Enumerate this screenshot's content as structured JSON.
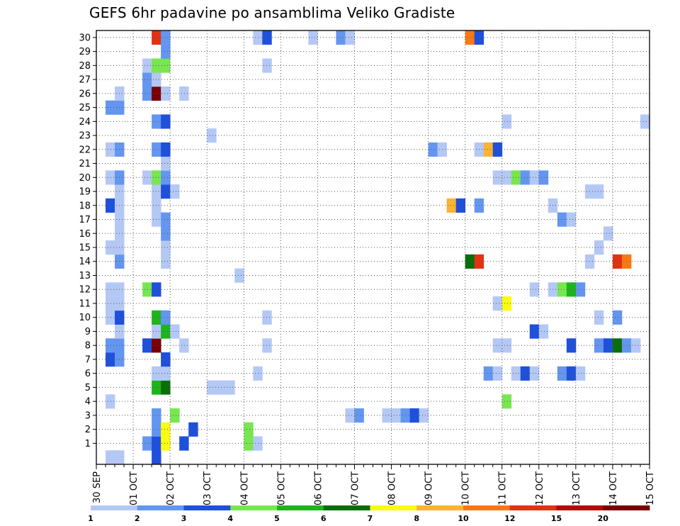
{
  "chart_data": {
    "type": "heatmap",
    "title": "GEFS 6hr padavine po ansamblima Veliko Gradiste",
    "x_tick_labels": [
      "30 SEP",
      "01 OCT",
      "02 OCT",
      "03 OCT",
      "04 OCT",
      "05 OCT",
      "06 OCT",
      "07 OCT",
      "08 OCT",
      "09 OCT",
      "10 OCT",
      "11 OCT",
      "12 OCT",
      "13 OCT",
      "14 OCT",
      "15 OCT"
    ],
    "time_step_hours": 6,
    "time_steps": 60,
    "y_tick_labels": [
      "1",
      "2",
      "3",
      "4",
      "5",
      "6",
      "7",
      "8",
      "9",
      "10",
      "11",
      "12",
      "13",
      "14",
      "15",
      "16",
      "17",
      "18",
      "19",
      "20",
      "21",
      "22",
      "23",
      "24",
      "25",
      "26",
      "27",
      "28",
      "29",
      "30"
    ],
    "members": 31,
    "legend": {
      "placement": "bottom",
      "boundaries": [
        1,
        2,
        3,
        4,
        5,
        6,
        7,
        8,
        10,
        12,
        15,
        20
      ],
      "boundary_labels": [
        "1",
        "2",
        "3",
        "4",
        "5",
        "6",
        "7",
        "8",
        "10",
        "12",
        "15",
        "20"
      ],
      "colors": [
        "#b4c8f5",
        "#6496f0",
        "#1e50dc",
        "#78e650",
        "#1eb41e",
        "#0a6e0a",
        "#fafa14",
        "#fab432",
        "#fa7814",
        "#e13214",
        "#b40a0a",
        "#780000"
      ]
    },
    "grid": true,
    "cells": [
      [
        1,
        0,
        1
      ],
      [
        2,
        0,
        1
      ],
      [
        6,
        0,
        3
      ],
      [
        5,
        1,
        2
      ],
      [
        6,
        1,
        3
      ],
      [
        7,
        1,
        7
      ],
      [
        9,
        1,
        3
      ],
      [
        16,
        1,
        4
      ],
      [
        17,
        1,
        1
      ],
      [
        6,
        2,
        2
      ],
      [
        7,
        2,
        7
      ],
      [
        10,
        2,
        3
      ],
      [
        16,
        2,
        4
      ],
      [
        6,
        3,
        2
      ],
      [
        8,
        3,
        4
      ],
      [
        27,
        3,
        1
      ],
      [
        28,
        3,
        2
      ],
      [
        31,
        3,
        1
      ],
      [
        32,
        3,
        1
      ],
      [
        33,
        3,
        2
      ],
      [
        34,
        3,
        3
      ],
      [
        35,
        3,
        1
      ],
      [
        1,
        4,
        1
      ],
      [
        44,
        4,
        4
      ],
      [
        6,
        5,
        5
      ],
      [
        7,
        5,
        6
      ],
      [
        12,
        5,
        1
      ],
      [
        13,
        5,
        1
      ],
      [
        14,
        5,
        1
      ],
      [
        6,
        6,
        1
      ],
      [
        7,
        6,
        1
      ],
      [
        17,
        6,
        1
      ],
      [
        42,
        6,
        2
      ],
      [
        43,
        6,
        1
      ],
      [
        45,
        6,
        1
      ],
      [
        46,
        6,
        3
      ],
      [
        47,
        6,
        1
      ],
      [
        50,
        6,
        2
      ],
      [
        51,
        6,
        3
      ],
      [
        52,
        6,
        1
      ],
      [
        1,
        7,
        3
      ],
      [
        2,
        7,
        2
      ],
      [
        7,
        7,
        3
      ],
      [
        1,
        8,
        2
      ],
      [
        2,
        8,
        2
      ],
      [
        5,
        8,
        3
      ],
      [
        6,
        8,
        12
      ],
      [
        9,
        8,
        1
      ],
      [
        18,
        8,
        1
      ],
      [
        43,
        8,
        1
      ],
      [
        44,
        8,
        1
      ],
      [
        51,
        8,
        3
      ],
      [
        54,
        8,
        2
      ],
      [
        55,
        8,
        3
      ],
      [
        56,
        8,
        6
      ],
      [
        57,
        8,
        2
      ],
      [
        58,
        8,
        1
      ],
      [
        2,
        9,
        1
      ],
      [
        6,
        9,
        1
      ],
      [
        7,
        9,
        5
      ],
      [
        8,
        9,
        1
      ],
      [
        47,
        9,
        3
      ],
      [
        48,
        9,
        1
      ],
      [
        1,
        10,
        1
      ],
      [
        2,
        10,
        3
      ],
      [
        6,
        10,
        5
      ],
      [
        7,
        10,
        2
      ],
      [
        18,
        10,
        1
      ],
      [
        54,
        10,
        1
      ],
      [
        56,
        10,
        2
      ],
      [
        1,
        11,
        1
      ],
      [
        2,
        11,
        1
      ],
      [
        43,
        11,
        1
      ],
      [
        44,
        11,
        7
      ],
      [
        1,
        12,
        1
      ],
      [
        2,
        12,
        1
      ],
      [
        5,
        12,
        4
      ],
      [
        6,
        12,
        3
      ],
      [
        47,
        12,
        1
      ],
      [
        49,
        12,
        1
      ],
      [
        50,
        12,
        4
      ],
      [
        51,
        12,
        5
      ],
      [
        52,
        12,
        2
      ],
      [
        15,
        13,
        1
      ],
      [
        2,
        14,
        2
      ],
      [
        7,
        14,
        1
      ],
      [
        40,
        14,
        6
      ],
      [
        41,
        14,
        10
      ],
      [
        53,
        14,
        1
      ],
      [
        56,
        14,
        10
      ],
      [
        57,
        14,
        9
      ],
      [
        1,
        15,
        1
      ],
      [
        2,
        15,
        1
      ],
      [
        7,
        15,
        1
      ],
      [
        54,
        15,
        1
      ],
      [
        2,
        16,
        1
      ],
      [
        7,
        16,
        2
      ],
      [
        55,
        16,
        1
      ],
      [
        2,
        17,
        1
      ],
      [
        6,
        17,
        1
      ],
      [
        7,
        17,
        2
      ],
      [
        50,
        17,
        2
      ],
      [
        51,
        17,
        1
      ],
      [
        1,
        18,
        3
      ],
      [
        2,
        18,
        1
      ],
      [
        6,
        18,
        1
      ],
      [
        38,
        18,
        8
      ],
      [
        39,
        18,
        3
      ],
      [
        41,
        18,
        2
      ],
      [
        49,
        18,
        1
      ],
      [
        2,
        19,
        1
      ],
      [
        6,
        19,
        1
      ],
      [
        7,
        19,
        3
      ],
      [
        8,
        19,
        1
      ],
      [
        53,
        19,
        1
      ],
      [
        54,
        19,
        1
      ],
      [
        1,
        20,
        1
      ],
      [
        2,
        20,
        2
      ],
      [
        5,
        20,
        1
      ],
      [
        6,
        20,
        4
      ],
      [
        7,
        20,
        2
      ],
      [
        43,
        20,
        1
      ],
      [
        44,
        20,
        1
      ],
      [
        45,
        20,
        4
      ],
      [
        46,
        20,
        2
      ],
      [
        47,
        20,
        1
      ],
      [
        48,
        20,
        2
      ],
      [
        7,
        21,
        1
      ],
      [
        1,
        22,
        1
      ],
      [
        2,
        22,
        2
      ],
      [
        6,
        22,
        2
      ],
      [
        7,
        22,
        3
      ],
      [
        36,
        22,
        2
      ],
      [
        37,
        22,
        1
      ],
      [
        41,
        22,
        1
      ],
      [
        42,
        22,
        8
      ],
      [
        43,
        22,
        3
      ],
      [
        12,
        23,
        1
      ],
      [
        6,
        24,
        2
      ],
      [
        7,
        24,
        3
      ],
      [
        44,
        24,
        1
      ],
      [
        59,
        24,
        1
      ],
      [
        1,
        25,
        2
      ],
      [
        2,
        25,
        2
      ],
      [
        2,
        26,
        1
      ],
      [
        5,
        26,
        2
      ],
      [
        6,
        26,
        12
      ],
      [
        7,
        26,
        1
      ],
      [
        9,
        26,
        1
      ],
      [
        5,
        27,
        2
      ],
      [
        6,
        27,
        1
      ],
      [
        5,
        28,
        1
      ],
      [
        6,
        28,
        4
      ],
      [
        7,
        28,
        4
      ],
      [
        18,
        28,
        1
      ],
      [
        7,
        29,
        2
      ],
      [
        6,
        30,
        10
      ],
      [
        7,
        30,
        2
      ],
      [
        17,
        30,
        1
      ],
      [
        18,
        30,
        3
      ],
      [
        23,
        30,
        1
      ],
      [
        26,
        30,
        2
      ],
      [
        27,
        30,
        1
      ],
      [
        40,
        30,
        9
      ],
      [
        41,
        30,
        3
      ]
    ]
  }
}
